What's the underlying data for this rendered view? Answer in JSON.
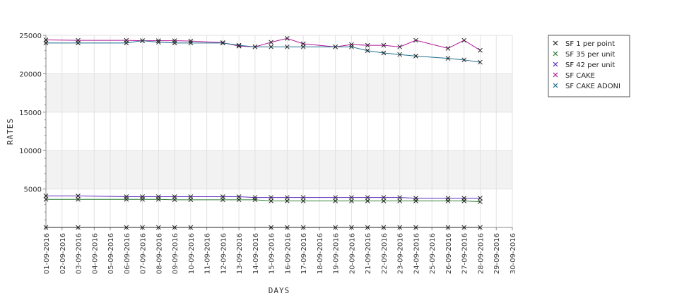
{
  "chart_data": {
    "type": "line",
    "title": "",
    "xlabel": "DAYS",
    "ylabel": "RATES",
    "ylim": [
      0,
      25000
    ],
    "yticks": [
      5000,
      10000,
      15000,
      20000,
      25000
    ],
    "ytick_labels": [
      "5000",
      "10000",
      "15000",
      "20000",
      "25000"
    ],
    "grid": true,
    "banded_background": true,
    "legend_position": "right",
    "categories": [
      "01-09-2016",
      "02-09-2016",
      "03-09-2016",
      "04-09-2016",
      "05-09-2016",
      "06-09-2016",
      "07-09-2016",
      "08-09-2016",
      "09-09-2016",
      "10-09-2016",
      "11-09-2016",
      "12-09-2016",
      "13-09-2016",
      "14-09-2016",
      "15-09-2016",
      "16-09-2016",
      "17-09-2016",
      "18-09-2016",
      "19-09-2016",
      "20-09-2016",
      "21-09-2016",
      "22-09-2016",
      "23-09-2016",
      "24-09-2016",
      "25-09-2016",
      "26-09-2016",
      "27-09-2016",
      "28-09-2016",
      "29-09-2016",
      "30-09-2016"
    ],
    "series": [
      {
        "name": "SF 1 per point",
        "color": "#222222",
        "points": [
          [
            "01-09-2016",
            5
          ],
          [
            "03-09-2016",
            5
          ],
          [
            "06-09-2016",
            5
          ],
          [
            "07-09-2016",
            5
          ],
          [
            "08-09-2016",
            5
          ],
          [
            "09-09-2016",
            5
          ],
          [
            "10-09-2016",
            5
          ],
          [
            "15-09-2016",
            5
          ],
          [
            "16-09-2016",
            5
          ],
          [
            "17-09-2016",
            5
          ],
          [
            "19-09-2016",
            5
          ],
          [
            "20-09-2016",
            5
          ],
          [
            "21-09-2016",
            5
          ],
          [
            "22-09-2016",
            5
          ],
          [
            "23-09-2016",
            5
          ],
          [
            "24-09-2016",
            5
          ],
          [
            "26-09-2016",
            5
          ],
          [
            "27-09-2016",
            5
          ],
          [
            "28-09-2016",
            5
          ]
        ]
      },
      {
        "name": "SF 35 per unit",
        "color": "#2e7d32",
        "points": [
          [
            "01-09-2016",
            3650
          ],
          [
            "03-09-2016",
            3650
          ],
          [
            "06-09-2016",
            3650
          ],
          [
            "07-09-2016",
            3650
          ],
          [
            "08-09-2016",
            3650
          ],
          [
            "09-09-2016",
            3600
          ],
          [
            "10-09-2016",
            3600
          ],
          [
            "12-09-2016",
            3600
          ],
          [
            "13-09-2016",
            3600
          ],
          [
            "14-09-2016",
            3600
          ],
          [
            "15-09-2016",
            3450
          ],
          [
            "16-09-2016",
            3450
          ],
          [
            "17-09-2016",
            3450
          ],
          [
            "19-09-2016",
            3450
          ],
          [
            "20-09-2016",
            3450
          ],
          [
            "21-09-2016",
            3450
          ],
          [
            "22-09-2016",
            3450
          ],
          [
            "23-09-2016",
            3450
          ],
          [
            "24-09-2016",
            3450
          ],
          [
            "26-09-2016",
            3450
          ],
          [
            "27-09-2016",
            3450
          ],
          [
            "28-09-2016",
            3350
          ]
        ]
      },
      {
        "name": "SF 42 per unit",
        "color": "#5b2bb8",
        "points": [
          [
            "01-09-2016",
            4100
          ],
          [
            "03-09-2016",
            4100
          ],
          [
            "06-09-2016",
            4000
          ],
          [
            "07-09-2016",
            4000
          ],
          [
            "08-09-2016",
            4000
          ],
          [
            "09-09-2016",
            4000
          ],
          [
            "10-09-2016",
            4000
          ],
          [
            "12-09-2016",
            4000
          ],
          [
            "13-09-2016",
            4000
          ],
          [
            "14-09-2016",
            3900
          ],
          [
            "15-09-2016",
            3900
          ],
          [
            "16-09-2016",
            3900
          ],
          [
            "17-09-2016",
            3900
          ],
          [
            "19-09-2016",
            3900
          ],
          [
            "20-09-2016",
            3900
          ],
          [
            "21-09-2016",
            3900
          ],
          [
            "22-09-2016",
            3900
          ],
          [
            "23-09-2016",
            3900
          ],
          [
            "24-09-2016",
            3800
          ],
          [
            "26-09-2016",
            3800
          ],
          [
            "27-09-2016",
            3800
          ],
          [
            "28-09-2016",
            3800
          ]
        ]
      },
      {
        "name": "SF CAKE",
        "color": "#b0189a",
        "points": [
          [
            "01-09-2016",
            24400
          ],
          [
            "03-09-2016",
            24350
          ],
          [
            "06-09-2016",
            24350
          ],
          [
            "07-09-2016",
            24300
          ],
          [
            "08-09-2016",
            24300
          ],
          [
            "09-09-2016",
            24300
          ],
          [
            "10-09-2016",
            24250
          ],
          [
            "12-09-2016",
            24050
          ],
          [
            "13-09-2016",
            23600
          ],
          [
            "14-09-2016",
            23500
          ],
          [
            "15-09-2016",
            24100
          ],
          [
            "16-09-2016",
            24600
          ],
          [
            "17-09-2016",
            23900
          ],
          [
            "19-09-2016",
            23500
          ],
          [
            "20-09-2016",
            23800
          ],
          [
            "21-09-2016",
            23700
          ],
          [
            "22-09-2016",
            23700
          ],
          [
            "23-09-2016",
            23500
          ],
          [
            "24-09-2016",
            24350
          ],
          [
            "26-09-2016",
            23300
          ],
          [
            "27-09-2016",
            24350
          ],
          [
            "28-09-2016",
            23050
          ]
        ]
      },
      {
        "name": "SF CAKE ADONI",
        "color": "#1f6e8c",
        "points": [
          [
            "01-09-2016",
            24000
          ],
          [
            "03-09-2016",
            24000
          ],
          [
            "06-09-2016",
            24000
          ],
          [
            "07-09-2016",
            24300
          ],
          [
            "08-09-2016",
            24100
          ],
          [
            "09-09-2016",
            24000
          ],
          [
            "10-09-2016",
            24000
          ],
          [
            "12-09-2016",
            24000
          ],
          [
            "13-09-2016",
            23700
          ],
          [
            "14-09-2016",
            23500
          ],
          [
            "15-09-2016",
            23500
          ],
          [
            "16-09-2016",
            23500
          ],
          [
            "17-09-2016",
            23500
          ],
          [
            "19-09-2016",
            23500
          ],
          [
            "20-09-2016",
            23500
          ],
          [
            "21-09-2016",
            23000
          ],
          [
            "22-09-2016",
            22700
          ],
          [
            "23-09-2016",
            22500
          ],
          [
            "24-09-2016",
            22300
          ],
          [
            "26-09-2016",
            22000
          ],
          [
            "27-09-2016",
            21800
          ],
          [
            "28-09-2016",
            21500
          ]
        ]
      }
    ]
  }
}
